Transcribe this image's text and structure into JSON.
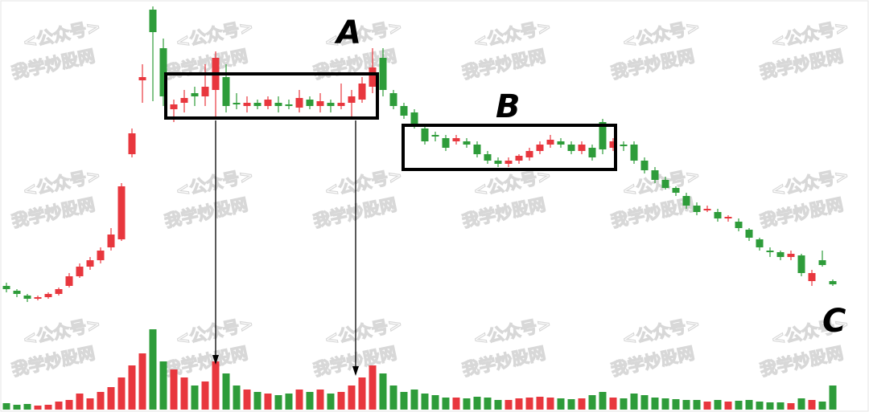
{
  "chart_data": {
    "type": "candlestick",
    "watermark": [
      "<公众号>",
      "我学炒股网"
    ],
    "annotations": [
      "A",
      "B",
      "C"
    ],
    "up_color": "#e8373e",
    "down_color": "#2e9c3a",
    "ylim": [
      0,
      100
    ],
    "volume_lim": [
      0,
      100
    ],
    "open": [
      11,
      9.5,
      8,
      7,
      7.5,
      8.5,
      11,
      14,
      17,
      19,
      23,
      25.5,
      52,
      75,
      97,
      85,
      66,
      68,
      71,
      70,
      72,
      76,
      68,
      67,
      68,
      67,
      68,
      67.5,
      66.5,
      69,
      67,
      68,
      67,
      68,
      69,
      73,
      82,
      71,
      67,
      65,
      60,
      58,
      57,
      56,
      56,
      55,
      52,
      50,
      49,
      50,
      51,
      53,
      55,
      56,
      55,
      53,
      54,
      62,
      54,
      55,
      55,
      50,
      47,
      44,
      41.5,
      39,
      36,
      34.5,
      34,
      32,
      31,
      28.5,
      25.5,
      22,
      21.5,
      20,
      20.5,
      12.5,
      19,
      12.5
    ],
    "high": [
      12,
      10,
      8.5,
      8,
      9,
      10.5,
      15,
      18,
      20,
      23,
      29,
      43,
      60,
      80,
      98,
      88,
      69,
      72,
      73,
      80,
      84,
      80,
      71,
      70,
      69,
      70,
      70,
      69,
      72,
      70,
      71,
      69,
      74,
      72,
      76,
      85,
      85,
      72,
      68,
      66,
      61,
      59,
      58,
      58,
      57,
      56,
      53,
      51,
      51,
      52,
      54,
      56,
      58,
      57,
      56,
      56,
      55,
      63,
      57,
      56,
      56,
      51,
      48,
      45,
      42,
      40,
      37,
      36,
      35,
      33,
      32,
      29,
      26,
      23,
      22,
      22,
      21,
      16,
      22,
      13
    ],
    "low": [
      9,
      7.5,
      6,
      6.5,
      7,
      8,
      10.5,
      13.5,
      16,
      18,
      22,
      25,
      51,
      68,
      68.5,
      67,
      62,
      65,
      67,
      67,
      63,
      65,
      66,
      65,
      66,
      66,
      65,
      66,
      65,
      66,
      65,
      65,
      66,
      63,
      68,
      71,
      70,
      66,
      63,
      60,
      55,
      56,
      53,
      55,
      54,
      51,
      49,
      48,
      48,
      49,
      50,
      52,
      54,
      54,
      52,
      52,
      50,
      52,
      53,
      53,
      49,
      46,
      43,
      41,
      39,
      35,
      33,
      34,
      31,
      31,
      28,
      25,
      22,
      20,
      19,
      19,
      14,
      11,
      17,
      11
    ],
    "close": [
      10,
      8.5,
      7,
      7.5,
      8.5,
      10,
      14,
      17,
      19,
      22,
      27,
      42,
      58.5,
      76,
      90,
      70,
      67.5,
      69.5,
      70,
      73,
      82,
      67,
      67.5,
      68,
      67,
      69,
      67,
      67,
      69.5,
      67,
      68.5,
      67,
      68,
      70,
      74,
      79,
      72,
      67,
      64,
      61,
      56,
      57.5,
      54,
      57,
      55,
      52,
      50,
      49,
      50,
      51.5,
      53,
      55,
      56.5,
      55,
      53,
      55,
      51,
      53.5,
      56,
      54.5,
      50,
      47,
      44,
      41.5,
      40,
      36,
      34,
      35,
      32,
      32.5,
      29,
      26,
      23,
      21.5,
      20,
      21,
      15,
      15,
      17.5,
      11.5
    ],
    "volume": [
      8,
      6,
      7,
      5,
      6,
      10,
      12,
      20,
      14,
      22,
      28,
      40,
      55,
      70,
      100,
      60,
      50,
      40,
      30,
      35,
      60,
      45,
      30,
      25,
      22,
      20,
      18,
      20,
      25,
      22,
      25,
      20,
      22,
      30,
      40,
      55,
      45,
      30,
      22,
      25,
      20,
      18,
      15,
      15,
      14,
      16,
      15,
      12,
      12,
      14,
      15,
      16,
      15,
      14,
      13,
      14,
      18,
      22,
      15,
      14,
      20,
      18,
      15,
      14,
      13,
      12,
      12,
      10,
      12,
      10,
      11,
      12,
      10,
      9,
      9,
      8,
      14,
      12,
      10,
      30
    ]
  }
}
